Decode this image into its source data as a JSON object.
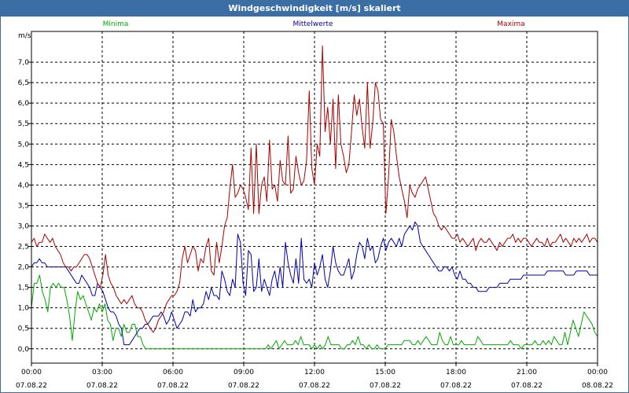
{
  "window": {
    "title": "Windgeschwindigkeit [m/s] skaliert"
  },
  "chart_data": {
    "type": "line",
    "title": "Windgeschwindigkeit [m/s] skaliert",
    "ylabel": "m/s",
    "xlabel": "",
    "ylim": [
      -0.35,
      7.75
    ],
    "xlim_hours": [
      0,
      24
    ],
    "grid": true,
    "legend_placement": "top",
    "yticks": [
      "7,0",
      "6,5",
      "6,0",
      "5,5",
      "5,0",
      "4,5",
      "4,0",
      "3,5",
      "3,0",
      "2,5",
      "2,0",
      "1,5",
      "1,0",
      "0,5",
      "0,0"
    ],
    "xticks": [
      {
        "time": "00:00",
        "date": "07.08.22"
      },
      {
        "time": "03:00",
        "date": "07.08.22"
      },
      {
        "time": "06:00",
        "date": "07.08.22"
      },
      {
        "time": "09:00",
        "date": "07.08.22"
      },
      {
        "time": "12:00",
        "date": "07.08.22"
      },
      {
        "time": "15:00",
        "date": "07.08.22"
      },
      {
        "time": "18:00",
        "date": "07.08.22"
      },
      {
        "time": "21:00",
        "date": "07.08.22"
      },
      {
        "time": "00:00",
        "date": "08.08.22"
      }
    ],
    "series": [
      {
        "name": "Minima",
        "color": "#00aa00",
        "values": [
          1.0,
          1.6,
          1.6,
          1.8,
          1.4,
          1.2,
          0.9,
          1.5,
          1.6,
          1.5,
          1.6,
          1.5,
          1.5,
          1.2,
          0.8,
          0.2,
          0.9,
          1.4,
          1.2,
          1.3,
          1.1,
          0.9,
          0.7,
          1.0,
          0.9,
          1.1,
          0.9,
          1.1,
          0.7,
          0.6,
          0.2,
          0.5,
          0.5,
          0.3,
          0.6,
          0.4,
          0.4,
          0.6,
          0.6,
          0.3,
          0.3,
          0.1,
          0.0,
          0.0,
          0.0,
          0.0,
          0.0,
          0.0,
          0.0,
          0.0,
          0.0,
          0.0,
          0.0,
          0.0,
          0.0,
          0.0,
          0.0,
          0.0,
          0.0,
          0.0,
          0.0,
          0.0,
          0.0,
          0.0,
          0.0,
          0.0,
          0.0,
          0.0,
          0.0,
          0.0,
          0.0,
          0.0,
          0.0,
          0.0,
          0.0,
          0.0,
          0.0,
          0.0,
          0.0,
          0.0,
          0.0,
          0.0,
          0.0,
          0.0,
          0.0,
          0.0,
          0.0,
          0.1,
          0.0,
          0.1,
          0.2,
          0.0,
          0.1,
          0.2,
          0.1,
          0.1,
          0.1,
          0.2,
          0.1,
          0.3,
          0.1,
          0.1,
          0.1,
          0.0,
          0.1,
          0.0,
          0.1,
          0.0,
          0.1,
          0.3,
          0.1,
          0.1,
          0.1,
          0.1,
          0.0,
          0.0,
          0.1,
          0.1,
          0.2,
          0.1,
          0.3,
          0.1,
          0.1,
          0.0,
          0.1,
          0.0,
          0.0,
          0.1,
          0.0,
          0.0,
          0.0,
          0.1,
          0.1,
          0.1,
          0.1,
          0.1,
          0.1,
          0.2,
          0.2,
          0.2,
          0.1,
          0.1,
          0.2,
          0.1,
          0.2,
          0.3,
          0.2,
          0.1,
          0.1,
          0.1,
          0.4,
          0.2,
          0.1,
          0.1,
          0.3,
          0.1,
          0.1,
          0.1,
          0.2,
          0.1,
          0.1,
          0.1,
          0.1,
          0.1,
          0.3,
          0.2,
          0.1,
          0.1,
          0.1,
          0.1,
          0.1,
          0.1,
          0.1,
          0.1,
          0.1,
          0.1,
          0.2,
          0.1,
          0.1,
          0.1,
          0.0,
          0.1,
          0.1,
          0.1,
          0.1,
          0.2,
          0.1,
          0.1,
          0.2,
          0.1,
          0.2,
          0.1,
          0.3,
          0.2,
          0.1,
          0.1,
          0.4,
          0.1,
          0.4,
          0.7,
          0.5,
          0.3,
          0.6,
          0.9,
          0.8,
          0.7,
          0.6,
          0.4,
          0.3
        ]
      },
      {
        "name": "Mittelwerte",
        "color": "#0000aa",
        "values": [
          2.0,
          2.1,
          2.1,
          2.2,
          2.1,
          2.1,
          2.0,
          2.0,
          2.0,
          2.0,
          2.0,
          2.0,
          2.0,
          2.0,
          1.9,
          1.8,
          1.7,
          1.6,
          1.6,
          1.8,
          1.7,
          1.6,
          1.5,
          1.3,
          1.3,
          1.6,
          1.5,
          1.4,
          1.2,
          1.0,
          0.9,
          0.9,
          0.8,
          0.6,
          0.5,
          0.1,
          0.1,
          0.1,
          0.2,
          0.3,
          0.4,
          0.5,
          0.5,
          0.6,
          0.6,
          0.7,
          0.8,
          0.8,
          0.8,
          0.9,
          0.8,
          0.6,
          0.7,
          0.9,
          0.7,
          0.5,
          0.6,
          0.7,
          0.9,
          0.9,
          0.8,
          1.2,
          0.9,
          1.0,
          1.0,
          1.1,
          1.4,
          1.2,
          1.5,
          1.3,
          1.3,
          1.2,
          1.9,
          1.7,
          1.4,
          1.3,
          1.7,
          1.5,
          2.8,
          2.6,
          1.6,
          1.3,
          2.4,
          2.3,
          1.4,
          1.5,
          2.2,
          1.4,
          1.7,
          1.5,
          1.3,
          1.7,
          1.9,
          1.5,
          2.0,
          1.5,
          2.6,
          2.1,
          1.8,
          1.6,
          2.2,
          1.6,
          2.7,
          1.7,
          1.6,
          1.7,
          1.5,
          2.1,
          1.8,
          2.0,
          2.3,
          1.7,
          1.5,
          1.9,
          2.5,
          2.1,
          1.9,
          1.8,
          1.8,
          2.0,
          2.2,
          1.7,
          1.9,
          2.3,
          2.6,
          2.5,
          2.2,
          2.7,
          2.4,
          2.5,
          2.1,
          2.2,
          2.5,
          2.7,
          2.4,
          2.6,
          2.7,
          2.6,
          2.5,
          2.7,
          2.5,
          2.8,
          2.9,
          3.0,
          2.9,
          3.1,
          3.0,
          2.6,
          2.5,
          2.4,
          2.3,
          2.2,
          2.1,
          2.0,
          1.9,
          1.9,
          2.0,
          2.0,
          1.9,
          2.0,
          1.8,
          1.7,
          1.9,
          1.7,
          1.7,
          1.6,
          1.6,
          1.5,
          1.5,
          1.4,
          1.4,
          1.4,
          1.4,
          1.5,
          1.5,
          1.5,
          1.5,
          1.6,
          1.6,
          1.6,
          1.6,
          1.7,
          1.7,
          1.7,
          1.7,
          1.7,
          1.8,
          1.8,
          1.8,
          1.8,
          1.8,
          1.8,
          1.8,
          1.8,
          1.8,
          1.9,
          1.9,
          1.9,
          1.9,
          1.9,
          1.9,
          1.9,
          1.8,
          1.8,
          1.8,
          1.8,
          1.9,
          1.9,
          1.9,
          1.9,
          1.9,
          1.8,
          1.8,
          1.8,
          1.8
        ]
      },
      {
        "name": "Maxima",
        "color": "#aa0000",
        "values": [
          2.6,
          2.7,
          2.5,
          2.6,
          2.6,
          2.8,
          2.7,
          2.6,
          2.7,
          2.5,
          2.4,
          2.3,
          2.1,
          2.0,
          2.0,
          1.9,
          2.0,
          2.0,
          2.1,
          2.2,
          2.3,
          2.3,
          2.2,
          2.0,
          1.8,
          1.6,
          1.5,
          1.8,
          2.3,
          1.8,
          1.6,
          1.5,
          1.3,
          1.2,
          1.1,
          1.2,
          1.1,
          1.2,
          1.3,
          1.1,
          1.0,
          1.0,
          0.9,
          0.7,
          0.6,
          0.5,
          0.4,
          0.5,
          0.7,
          0.8,
          0.9,
          1.1,
          1.2,
          1.3,
          1.3,
          1.4,
          1.6,
          2.2,
          2.5,
          2.1,
          2.3,
          2.5,
          2.4,
          1.9,
          2.2,
          2.1,
          2.5,
          2.7,
          1.9,
          1.8,
          2.6,
          2.1,
          2.5,
          3.0,
          3.2,
          3.9,
          4.5,
          3.7,
          3.8,
          4.0,
          3.9,
          3.7,
          3.4,
          4.9,
          3.3,
          5.0,
          3.3,
          4.0,
          4.2,
          3.6,
          5.1,
          3.9,
          4.0,
          3.6,
          4.6,
          4.1,
          4.0,
          5.2,
          3.8,
          3.9,
          4.7,
          4.3,
          4.0,
          4.1,
          4.6,
          6.3,
          4.4,
          4.0,
          5.0,
          4.7,
          7.4,
          5.3,
          5.9,
          5.0,
          6.1,
          4.4,
          6.2,
          5.0,
          4.7,
          4.3,
          4.5,
          5.3,
          6.2,
          5.7,
          6.1,
          5.4,
          4.9,
          6.5,
          4.9,
          5.5,
          6.5,
          6.3,
          5.6,
          5.5,
          3.3,
          4.2,
          5.6,
          5.3,
          4.7,
          4.2,
          3.9,
          3.6,
          3.2,
          4.0,
          3.8,
          3.7,
          3.9,
          4.0,
          4.1,
          4.2,
          3.9,
          3.6,
          3.3,
          3.2,
          3.0,
          2.9,
          3.0,
          2.9,
          2.8,
          2.7,
          2.7,
          2.8,
          2.6,
          2.7,
          2.6,
          2.5,
          2.6,
          2.7,
          2.4,
          2.6,
          2.7,
          2.6,
          2.6,
          2.7,
          2.6,
          2.5,
          2.4,
          2.6,
          2.5,
          2.6,
          2.7,
          2.7,
          2.8,
          2.6,
          2.7,
          2.6,
          2.7,
          2.7,
          2.6,
          2.5,
          2.6,
          2.7,
          2.6,
          2.6,
          2.5,
          2.7,
          2.5,
          2.6,
          2.6,
          2.7,
          2.8,
          2.6,
          2.7,
          2.6,
          2.5,
          2.7,
          2.6,
          2.7,
          2.6,
          2.7,
          2.8,
          2.6,
          2.7,
          2.7,
          2.6
        ]
      }
    ]
  }
}
